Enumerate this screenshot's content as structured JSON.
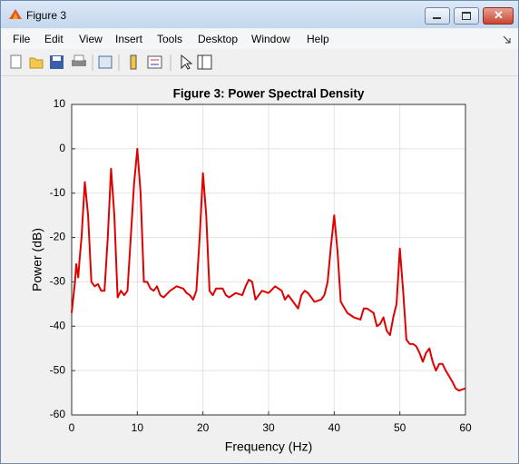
{
  "window": {
    "title": "Figure 3",
    "menu": [
      "File",
      "Edit",
      "View",
      "Insert",
      "Tools",
      "Desktop",
      "Window",
      "Help"
    ]
  },
  "chart_data": {
    "type": "line",
    "title": "Figure 3: Power Spectral Density",
    "xlabel": "Frequency (Hz)",
    "ylabel": "Power (dB)",
    "x": [
      0,
      0.5,
      0.7,
      1,
      1.2,
      1.5,
      2,
      2.5,
      3,
      3.5,
      4,
      4.5,
      5,
      5.5,
      6,
      6.5,
      7,
      7.5,
      8,
      8.5,
      9,
      9.5,
      10,
      10.5,
      11,
      11.5,
      12,
      12.5,
      13,
      13.5,
      14,
      15,
      16,
      17,
      17.5,
      18,
      18.5,
      19,
      19.5,
      20,
      20.5,
      21,
      21.5,
      22,
      23,
      23.5,
      24,
      25,
      26,
      26.5,
      27,
      27.5,
      28,
      28.5,
      29,
      30,
      31,
      32,
      32.5,
      33,
      34,
      34.5,
      35,
      35.5,
      36,
      37,
      38,
      38.5,
      39,
      39.5,
      40,
      40.5,
      41,
      42,
      43,
      44,
      44.5,
      45,
      45.5,
      46,
      46.5,
      47,
      47.5,
      48,
      48.5,
      49,
      49.5,
      50,
      50.5,
      51,
      51.5,
      52,
      52.5,
      53,
      53.5,
      54,
      54.5,
      55,
      55.5,
      56,
      56.5,
      57,
      58,
      58.5,
      59,
      60
    ],
    "values": [
      -37,
      -30,
      -26,
      -29,
      -25,
      -20,
      -7.5,
      -15,
      -30,
      -31,
      -30.5,
      -32,
      -32,
      -20,
      -4.5,
      -15,
      -33.5,
      -32,
      -33,
      -32,
      -20,
      -8,
      0,
      -10,
      -30,
      -30,
      -31.5,
      -32,
      -31,
      -33,
      -33.5,
      -32,
      -31,
      -31.5,
      -32.5,
      -33,
      -34,
      -32,
      -20,
      -5.5,
      -15,
      -32,
      -33,
      -31.5,
      -31.5,
      -33,
      -33.5,
      -32.5,
      -33,
      -31,
      -29.5,
      -30,
      -34,
      -33,
      -32,
      -32.5,
      -31,
      -32,
      -34,
      -33,
      -35,
      -36,
      -33,
      -32,
      -32.5,
      -34.5,
      -34,
      -33,
      -30,
      -22,
      -15,
      -23,
      -34.5,
      -37,
      -38,
      -38.5,
      -36,
      -36,
      -36.5,
      -37,
      -40,
      -39.5,
      -38,
      -41,
      -42,
      -38,
      -35,
      -22.5,
      -32,
      -43,
      -44,
      -44,
      -44.5,
      -46,
      -48,
      -46,
      -45,
      -48,
      -50,
      -48.5,
      -48.5,
      -50,
      -52.5,
      -54,
      -54.5,
      -54
    ],
    "color": "#e00000",
    "xlim": [
      0,
      60
    ],
    "xticks": [
      0,
      10,
      20,
      30,
      40,
      50,
      60
    ],
    "ylim": [
      -60,
      10
    ],
    "yticks": [
      -60,
      -50,
      -40,
      -30,
      -20,
      -10,
      0,
      10
    ],
    "grid": true
  }
}
